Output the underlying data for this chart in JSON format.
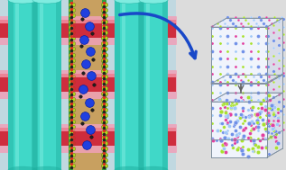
{
  "bg_color": "#e8e8e8",
  "colors": {
    "pink_slab": "#f0a0b8",
    "pink_slab_dark": "#d06070",
    "teal": "#40d8c8",
    "teal_dark": "#20b0a0",
    "teal_light": "#80ece0",
    "red_bar": "#cc2030",
    "red_bar_light": "#ee6070",
    "green_border": "#30a040",
    "green_dot": "#b0d820",
    "tan": "#c8a060",
    "blue_atom": "#2040e0",
    "black_atom": "#202020",
    "red_atom": "#e03020",
    "arrow_blue": "#1848c8",
    "cube_bg": "#f8f8ff",
    "sphere_blue": "#7090e8",
    "sphere_magenta": "#e040a0",
    "sphere_green": "#a8e030",
    "sphere_lightblue": "#a0c8f8",
    "needle_gray": "#606060"
  },
  "left_bg": "#c0d8e0",
  "left_bg2": "#b8d0dc",
  "image_bg": "#dcdcdc"
}
